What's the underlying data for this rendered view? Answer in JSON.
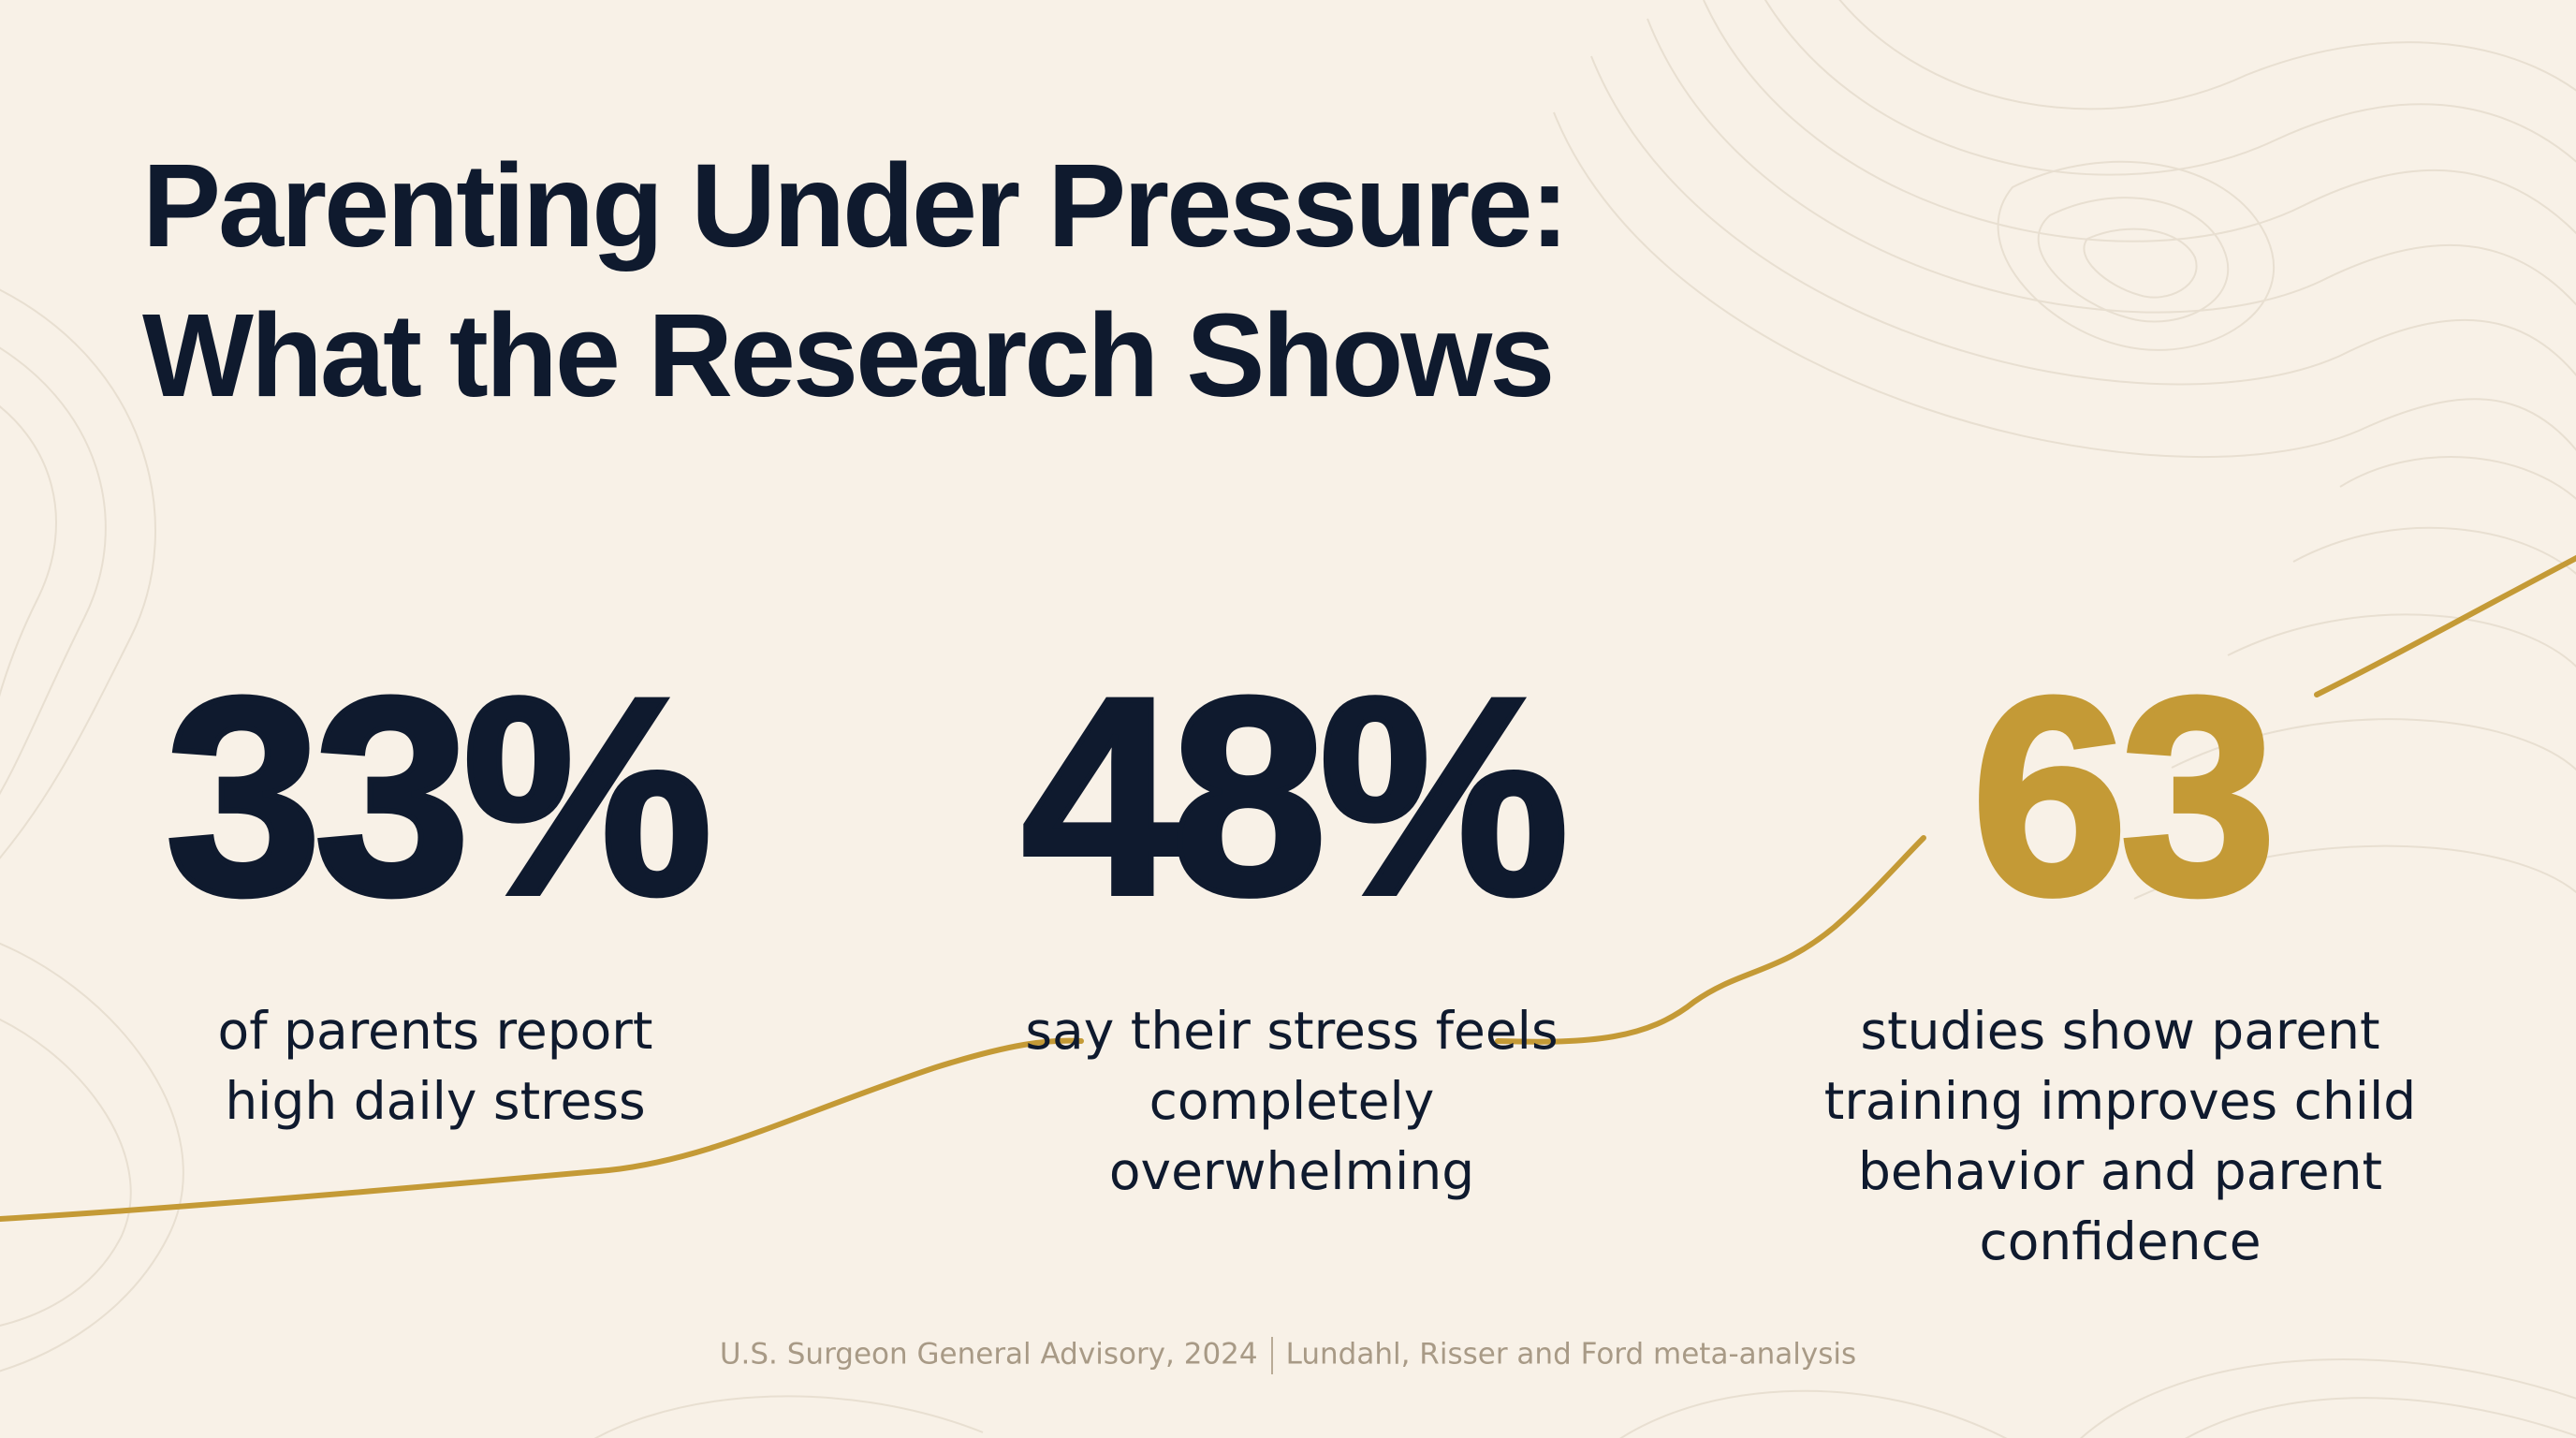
{
  "title": {
    "line1": "Parenting Under Pressure:",
    "line2": "What the Research Shows"
  },
  "stats": [
    {
      "value": "33%",
      "label_lines": [
        "of parents report",
        "high daily stress"
      ],
      "color": "#0f1a2e"
    },
    {
      "value": "48%",
      "label_lines": [
        "say their stress feels",
        "completely",
        "overwhelming"
      ],
      "color": "#0f1a2e"
    },
    {
      "value": "63",
      "label_lines": [
        "studies show parent",
        "training improves child",
        "behavior and parent",
        "confidence"
      ],
      "color": "#c49a36"
    }
  ],
  "source": {
    "part1": "U.S. Surgeon General Advisory, 2024",
    "part2": "Lundahl, Risser and Ford meta-analysis"
  },
  "colors": {
    "background": "#f8f1e7",
    "text_dark": "#0f1a2e",
    "accent_gold": "#c49a36",
    "contour": "#e6dccd",
    "source_text": "#a89a86"
  }
}
